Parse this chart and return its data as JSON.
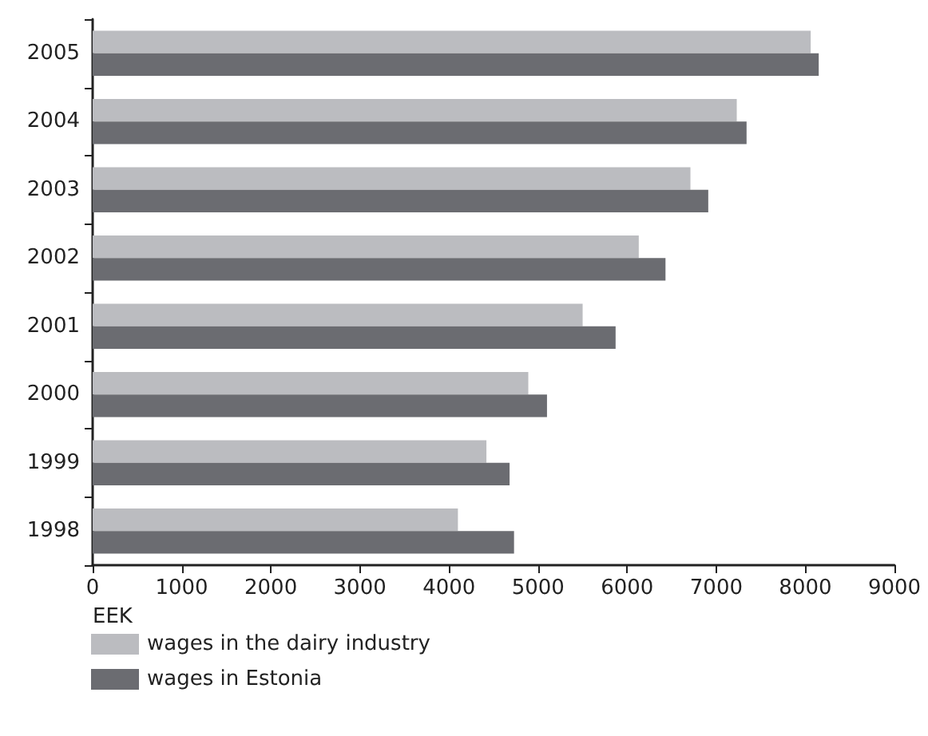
{
  "chart_data": {
    "type": "bar",
    "orientation": "horizontal",
    "xlabel": "EEK",
    "categories": [
      "2005",
      "2004",
      "2003",
      "2002",
      "2001",
      "2000",
      "1999",
      "1998"
    ],
    "series": [
      {
        "name": "wages in the dairy industry",
        "color": "#bbbcc0",
        "values": [
          8060,
          7230,
          6710,
          6130,
          5500,
          4890,
          4420,
          4100
        ]
      },
      {
        "name": "wages in Estonia",
        "color": "#6b6c71",
        "values": [
          8150,
          7340,
          6910,
          6430,
          5870,
          5100,
          4680,
          4730
        ]
      }
    ],
    "xlim": [
      0,
      9000
    ],
    "xticks": [
      0,
      1000,
      2000,
      3000,
      4000,
      5000,
      6000,
      7000,
      8000,
      9000
    ],
    "grid": false,
    "legend": "bottom left"
  }
}
